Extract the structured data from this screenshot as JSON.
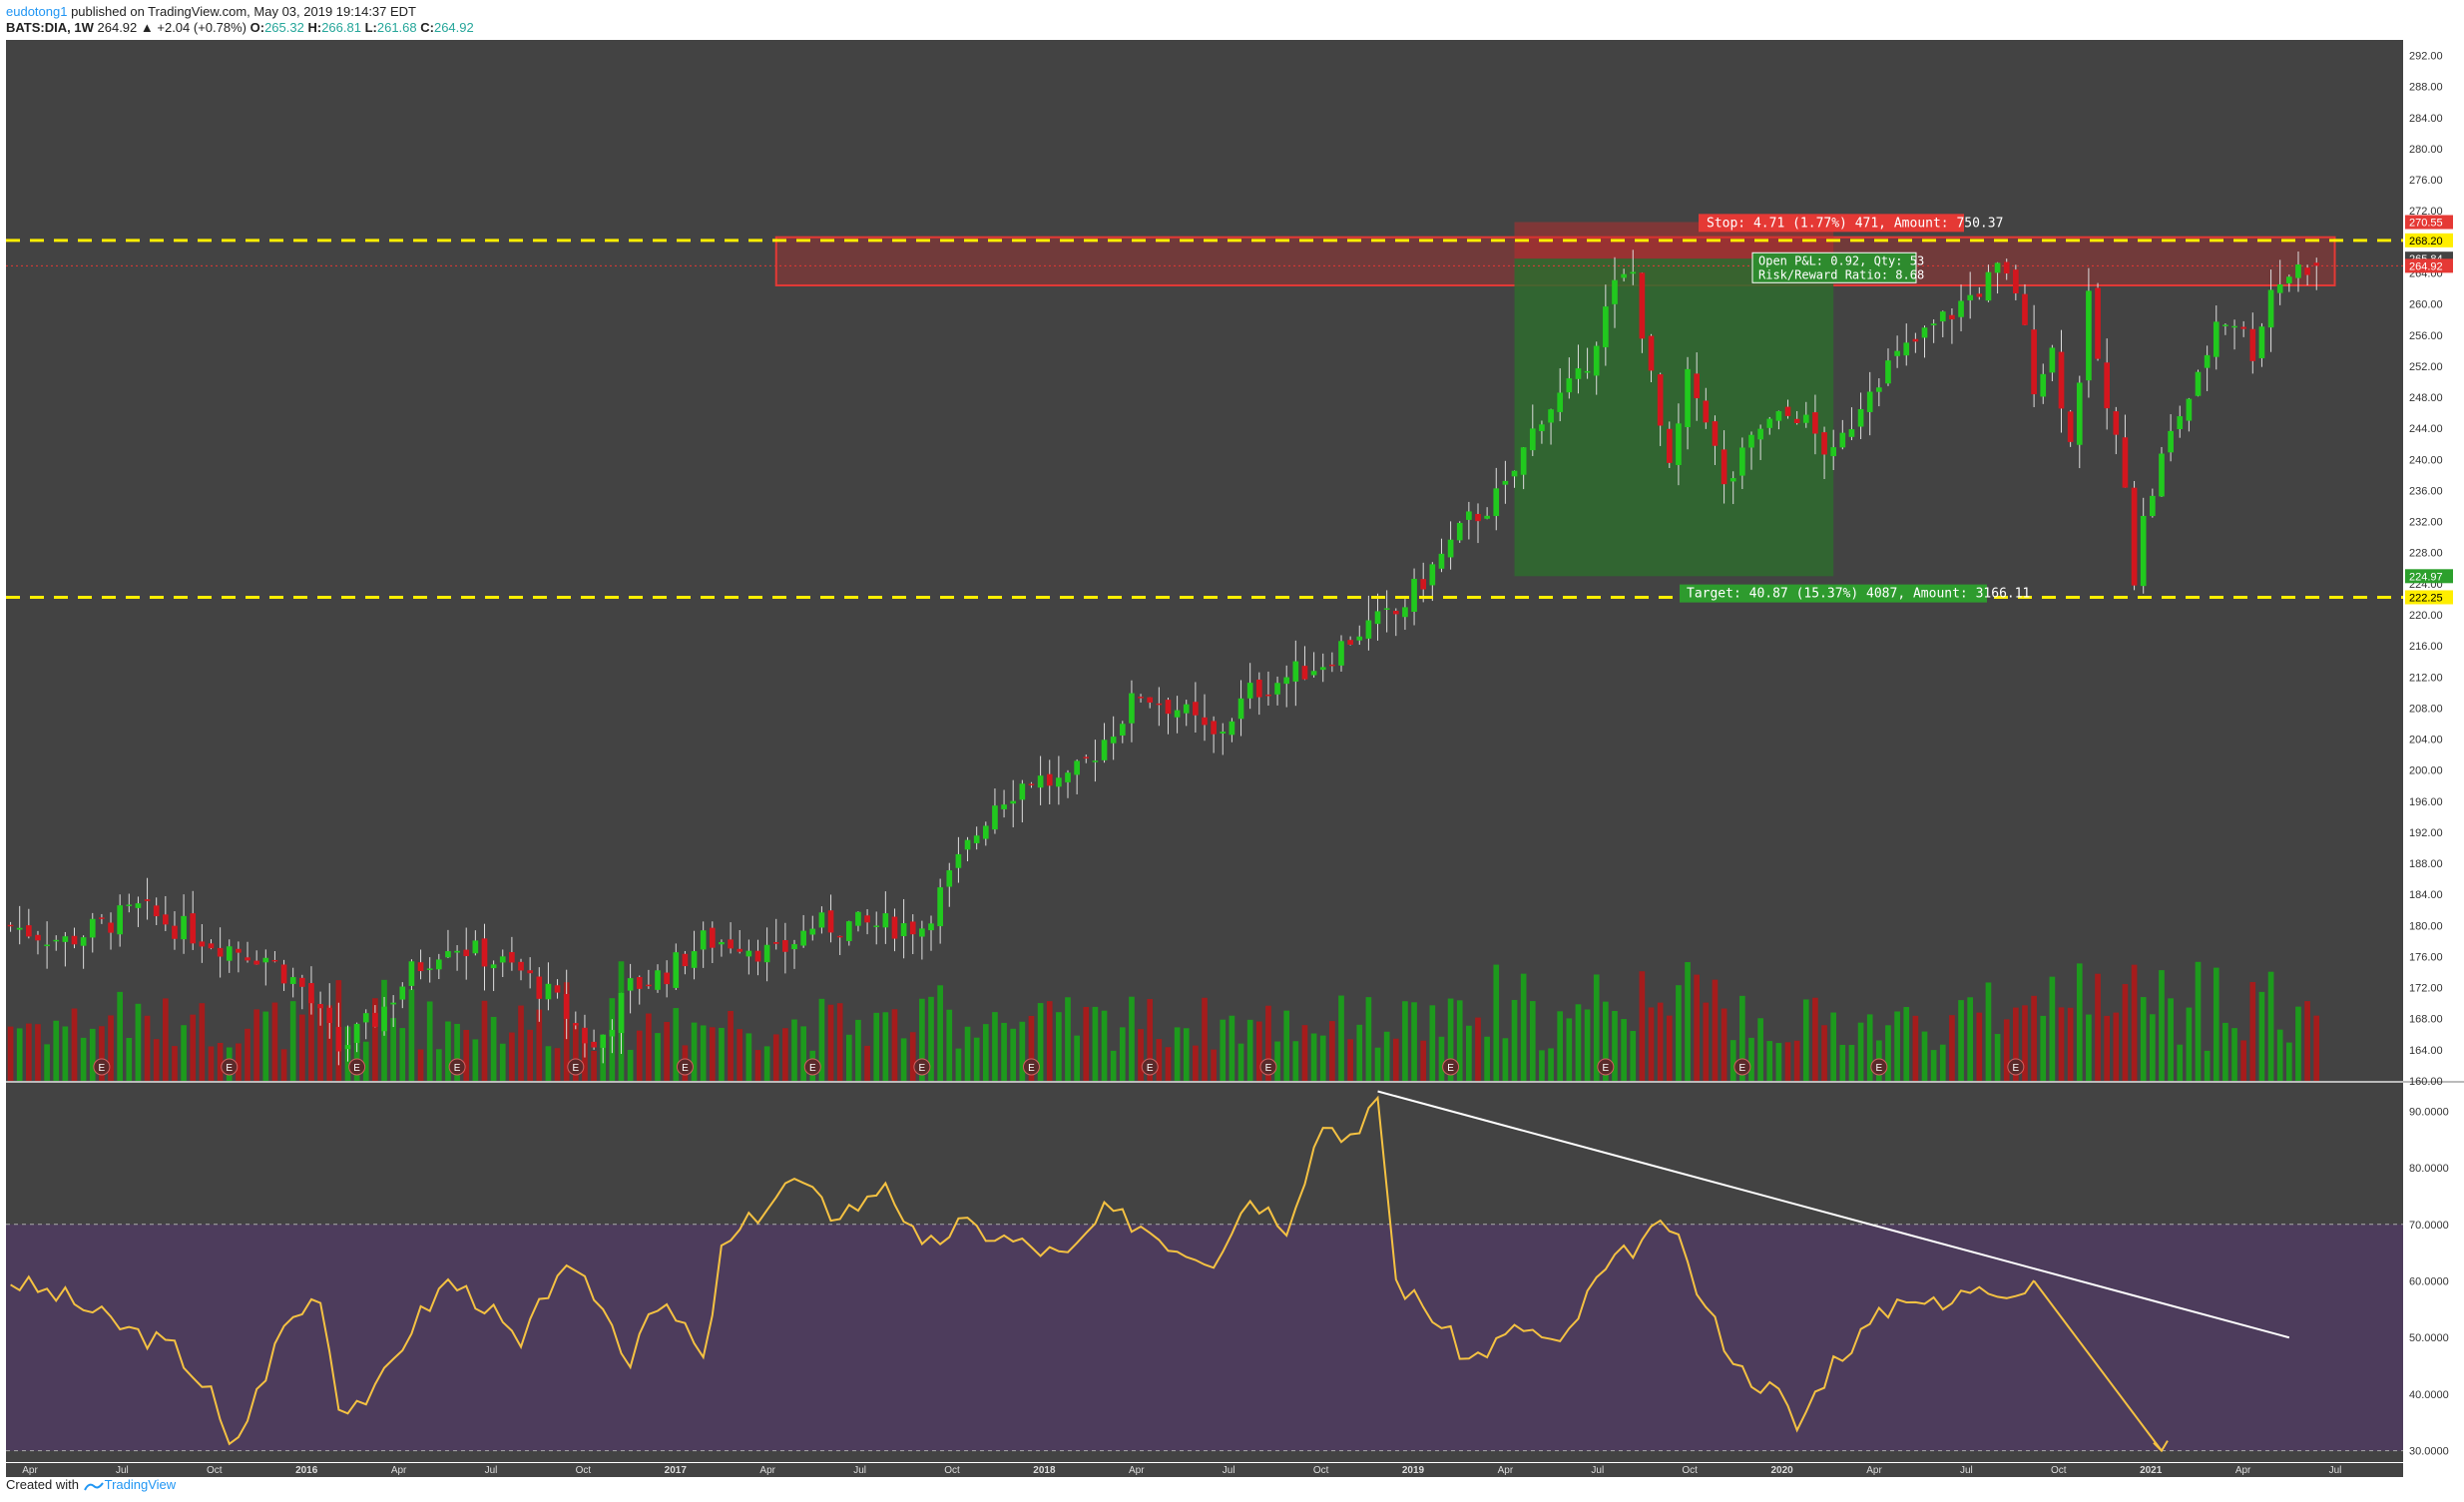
{
  "header": {
    "author": "eudotong1",
    "published_text": "published on TradingView.com, May 03, 2019 19:14:37 EDT",
    "symbol": "BATS:DIA, 1W",
    "last": "264.92",
    "change": "▲ +2.04 (+0.78%)",
    "o_label": "O:",
    "o_value": "265.32",
    "h_label": "H:",
    "h_value": "266.81",
    "l_label": "L:",
    "l_value": "261.68",
    "c_label": "C:",
    "c_value": "264.92"
  },
  "footer": {
    "created_with": "Created with",
    "brand": "TradingView"
  },
  "colors": {
    "pane_bg": "#434343",
    "rsi_band": "#4d3c5c",
    "candle_up": "#21c91e",
    "candle_down": "#d3161e",
    "vol_up": "#1d9a1d",
    "vol_down": "#a51c1c",
    "dashed_level": "#ffee00",
    "rsi_line": "#f5c242",
    "trendline": "#ffffff",
    "stop_zone": "#c92a2a",
    "target_zone": "#2e6b2e"
  },
  "price_axis": {
    "ticks": [
      "292.00",
      "288.00",
      "284.00",
      "280.00",
      "276.00",
      "272.00",
      "268.00",
      "264.00",
      "260.00",
      "256.00",
      "252.00",
      "248.00",
      "244.00",
      "240.00",
      "236.00",
      "232.00",
      "228.00",
      "224.00",
      "220.00",
      "216.00",
      "212.00",
      "208.00",
      "204.00",
      "200.00",
      "196.00",
      "192.00",
      "188.00",
      "184.00",
      "180.00",
      "176.00",
      "172.00",
      "168.00",
      "164.00",
      "160.00"
    ],
    "labels": [
      {
        "text": "270.55",
        "price": 270.55,
        "color": "#e53935"
      },
      {
        "text": "268.20",
        "price": 268.2,
        "color": "#ffee00"
      },
      {
        "text": "265.84",
        "price": 265.84,
        "color": "#434343"
      },
      {
        "text": "264.92",
        "price": 264.92,
        "color": "#e53935"
      },
      {
        "text": "224.97",
        "price": 224.97,
        "color": "#2ca02c"
      },
      {
        "text": "222.25",
        "price": 222.25,
        "color": "#ffee00"
      }
    ]
  },
  "rsi_axis": {
    "ticks": [
      "90.0000",
      "80.0000",
      "70.0000",
      "60.0000",
      "50.0000",
      "40.0000",
      "30.0000"
    ]
  },
  "time_axis": {
    "labels": [
      {
        "t": "Apr",
        "b": false
      },
      {
        "t": "Jul",
        "b": false
      },
      {
        "t": "Oct",
        "b": false
      },
      {
        "t": "2016",
        "b": true
      },
      {
        "t": "Apr",
        "b": false
      },
      {
        "t": "Jul",
        "b": false
      },
      {
        "t": "Oct",
        "b": false
      },
      {
        "t": "2017",
        "b": true
      },
      {
        "t": "Apr",
        "b": false
      },
      {
        "t": "Jul",
        "b": false
      },
      {
        "t": "Oct",
        "b": false
      },
      {
        "t": "2018",
        "b": true
      },
      {
        "t": "Apr",
        "b": false
      },
      {
        "t": "Jul",
        "b": false
      },
      {
        "t": "Oct",
        "b": false
      },
      {
        "t": "2019",
        "b": true
      },
      {
        "t": "Apr",
        "b": false
      },
      {
        "t": "Jul",
        "b": false
      },
      {
        "t": "Oct",
        "b": false
      },
      {
        "t": "2020",
        "b": true
      },
      {
        "t": "Apr",
        "b": false
      },
      {
        "t": "Jul",
        "b": false
      },
      {
        "t": "Oct",
        "b": false
      },
      {
        "t": "2021",
        "b": true
      },
      {
        "t": "Apr",
        "b": false
      },
      {
        "t": "Jul",
        "b": false
      }
    ]
  },
  "annotations": {
    "stop_label": "Stop: 4.71 (1.77%) 471, Amount: 750.37",
    "open_pnl_label": "Open P&L: 0.92, Qty: 53",
    "risk_reward_label": "Risk/Reward Ratio: 8.68",
    "target_label": "Target: 40.87 (15.37%) 4087, Amount: 3166.11",
    "earnings_marker": "E"
  },
  "chart_data": {
    "type": "candlestick",
    "interval": "1W",
    "ylim": [
      160,
      294
    ],
    "rsi_ylim": [
      28,
      95
    ],
    "rsi_levels": [
      70,
      30
    ],
    "horizontal_levels": [
      268.2,
      222.25
    ],
    "resistance_zone": [
      262.4,
      268.6
    ],
    "position": {
      "entry": 265.84,
      "stop": 270.55,
      "target": 224.97
    },
    "close_path": [
      [
        0,
        180
      ],
      [
        6,
        178
      ],
      [
        14,
        182
      ],
      [
        22,
        178
      ],
      [
        28,
        176
      ],
      [
        32,
        172
      ],
      [
        36,
        164
      ],
      [
        40,
        168
      ],
      [
        44,
        174
      ],
      [
        48,
        178
      ],
      [
        52,
        176
      ],
      [
        56,
        174
      ],
      [
        60,
        170
      ],
      [
        64,
        164
      ],
      [
        68,
        172
      ],
      [
        72,
        174
      ],
      [
        76,
        178
      ],
      [
        80,
        178
      ],
      [
        84,
        176
      ],
      [
        88,
        180
      ],
      [
        94,
        180
      ],
      [
        100,
        180
      ],
      [
        104,
        188
      ],
      [
        108,
        196
      ],
      [
        112,
        199
      ],
      [
        116,
        198
      ],
      [
        120,
        204
      ],
      [
        124,
        210
      ],
      [
        128,
        208
      ],
      [
        132,
        204
      ],
      [
        136,
        210
      ],
      [
        140,
        212
      ],
      [
        144,
        214
      ],
      [
        148,
        218
      ],
      [
        152,
        220
      ],
      [
        156,
        226
      ],
      [
        160,
        232
      ],
      [
        164,
        236
      ],
      [
        168,
        246
      ],
      [
        172,
        250
      ],
      [
        176,
        262
      ],
      [
        178,
        264
      ],
      [
        180,
        250
      ],
      [
        182,
        238
      ],
      [
        184,
        250
      ],
      [
        186,
        246
      ],
      [
        188,
        236
      ],
      [
        190,
        240
      ],
      [
        192,
        244
      ],
      [
        196,
        246
      ],
      [
        200,
        240
      ],
      [
        204,
        250
      ],
      [
        208,
        254
      ],
      [
        212,
        258
      ],
      [
        216,
        262
      ],
      [
        218,
        264
      ],
      [
        220,
        262
      ],
      [
        222,
        250
      ],
      [
        224,
        254
      ],
      [
        226,
        242
      ],
      [
        228,
        260
      ],
      [
        230,
        246
      ],
      [
        232,
        238
      ],
      [
        233,
        225
      ],
      [
        234,
        232
      ],
      [
        236,
        240
      ],
      [
        238,
        246
      ],
      [
        240,
        250
      ],
      [
        242,
        258
      ],
      [
        244,
        258
      ],
      [
        246,
        254
      ],
      [
        248,
        262
      ],
      [
        250,
        264
      ],
      [
        252,
        265
      ],
      [
        253,
        264.92
      ]
    ],
    "rsi_path": [
      [
        0,
        60
      ],
      [
        6,
        57
      ],
      [
        12,
        52
      ],
      [
        18,
        48
      ],
      [
        22,
        40
      ],
      [
        24,
        30
      ],
      [
        26,
        36
      ],
      [
        30,
        52
      ],
      [
        34,
        58
      ],
      [
        36,
        38
      ],
      [
        40,
        40
      ],
      [
        44,
        52
      ],
      [
        48,
        60
      ],
      [
        52,
        56
      ],
      [
        56,
        48
      ],
      [
        60,
        62
      ],
      [
        64,
        58
      ],
      [
        68,
        46
      ],
      [
        70,
        56
      ],
      [
        74,
        52
      ],
      [
        76,
        45
      ],
      [
        78,
        65
      ],
      [
        82,
        72
      ],
      [
        86,
        78
      ],
      [
        90,
        72
      ],
      [
        94,
        74
      ],
      [
        96,
        78
      ],
      [
        100,
        65
      ],
      [
        104,
        70
      ],
      [
        108,
        68
      ],
      [
        112,
        66
      ],
      [
        116,
        64
      ],
      [
        120,
        72
      ],
      [
        124,
        70
      ],
      [
        128,
        66
      ],
      [
        132,
        64
      ],
      [
        136,
        75
      ],
      [
        140,
        70
      ],
      [
        144,
        88
      ],
      [
        148,
        85
      ],
      [
        150,
        93
      ],
      [
        152,
        60
      ],
      [
        156,
        54
      ],
      [
        160,
        46
      ],
      [
        166,
        52
      ],
      [
        170,
        48
      ],
      [
        174,
        60
      ],
      [
        178,
        66
      ],
      [
        182,
        70
      ],
      [
        186,
        55
      ],
      [
        190,
        44
      ],
      [
        194,
        40
      ],
      [
        196,
        34
      ],
      [
        200,
        46
      ],
      [
        204,
        52
      ],
      [
        208,
        58
      ],
      [
        212,
        55
      ],
      [
        216,
        60
      ],
      [
        220,
        58
      ],
      [
        222,
        60
      ]
    ],
    "rsi_projection": [
      [
        222,
        60
      ],
      [
        236,
        30
      ]
    ],
    "rsi_trendline": [
      [
        150,
        93.5
      ],
      [
        250,
        50
      ]
    ]
  }
}
